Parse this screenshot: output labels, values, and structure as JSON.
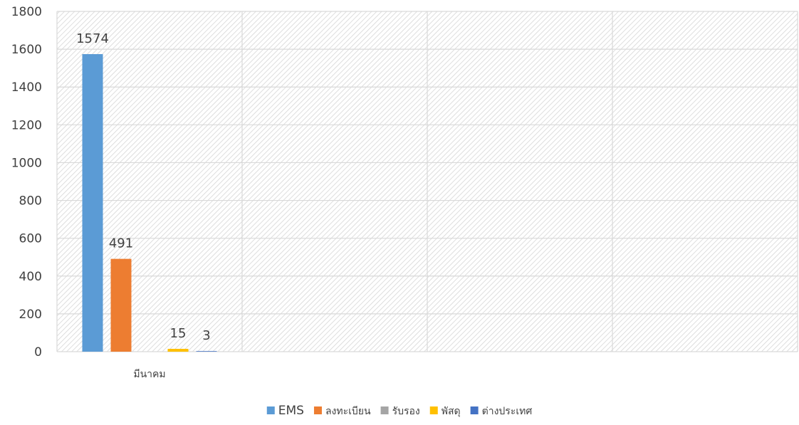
{
  "chart_data": {
    "type": "bar",
    "title": "",
    "xlabel": "",
    "ylabel": "",
    "ylim": [
      0,
      1800
    ],
    "yticks": [
      0,
      200,
      400,
      600,
      800,
      1000,
      1200,
      1400,
      1600,
      1800
    ],
    "grid": true,
    "legend_position": "bottom",
    "categories": [
      "มีนาคม",
      "",
      "",
      ""
    ],
    "series": [
      {
        "name": "EMS",
        "color": "#5B9BD5",
        "values": [
          1574,
          null,
          null,
          null
        ],
        "labels": [
          "1574",
          "",
          "",
          ""
        ]
      },
      {
        "name": "ลงทะเบียน",
        "color": "#ED7D31",
        "values": [
          491,
          null,
          null,
          null
        ],
        "labels": [
          "491",
          "",
          "",
          ""
        ]
      },
      {
        "name": "รับรอง",
        "color": "#A5A5A5",
        "values": [
          0,
          null,
          null,
          null
        ],
        "labels": [
          "",
          "",
          "",
          ""
        ]
      },
      {
        "name": "พัสดุ",
        "color": "#FFC000",
        "values": [
          15,
          null,
          null,
          null
        ],
        "labels": [
          "15",
          "",
          "",
          ""
        ]
      },
      {
        "name": "ต่างประเทศ",
        "color": "#4472C4",
        "values": [
          3,
          null,
          null,
          null
        ],
        "labels": [
          "3",
          "",
          "",
          ""
        ]
      }
    ]
  }
}
